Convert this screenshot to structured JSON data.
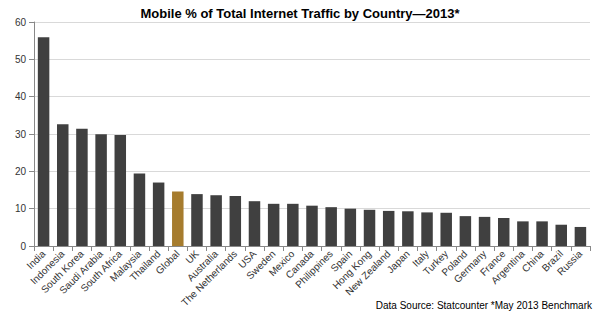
{
  "chart_data": {
    "type": "bar",
    "title": "Mobile % of Total Internet Traffic by Country—2013*",
    "annotations": [
      "Data Source: Statcounter *May 2013 Benchmark"
    ],
    "categories": [
      "India",
      "Indonesia",
      "South Korea",
      "Saudi Arabia",
      "South Africa",
      "Malaysia",
      "Thailand",
      "Global",
      "UK",
      "Australia",
      "The Netherlands",
      "USA",
      "Sweden",
      "Mexico",
      "Canada",
      "Philippines",
      "Spain",
      "Hong Kong",
      "New Zealand",
      "Japan",
      "Italy",
      "Turkey",
      "Poland",
      "Germany",
      "France",
      "Argentina",
      "China",
      "Brazil",
      "Russia"
    ],
    "values": [
      55.9,
      32.6,
      31.4,
      29.9,
      29.7,
      19.4,
      17.0,
      14.6,
      13.9,
      13.6,
      13.4,
      12.0,
      11.3,
      11.3,
      10.8,
      10.4,
      10.0,
      9.7,
      9.4,
      9.3,
      9.0,
      8.9,
      8.0,
      7.8,
      7.5,
      6.6,
      6.6,
      5.7,
      5.1
    ],
    "colors": [
      "#404040",
      "#404040",
      "#404040",
      "#404040",
      "#404040",
      "#404040",
      "#404040",
      "#a67c2e",
      "#404040",
      "#404040",
      "#404040",
      "#404040",
      "#404040",
      "#404040",
      "#404040",
      "#404040",
      "#404040",
      "#404040",
      "#404040",
      "#404040",
      "#404040",
      "#404040",
      "#404040",
      "#404040",
      "#404040",
      "#404040",
      "#404040",
      "#404040",
      "#404040"
    ],
    "ylim": [
      0,
      60
    ],
    "yticks": [
      0,
      10,
      20,
      30,
      40,
      50,
      60
    ],
    "grid": true
  }
}
